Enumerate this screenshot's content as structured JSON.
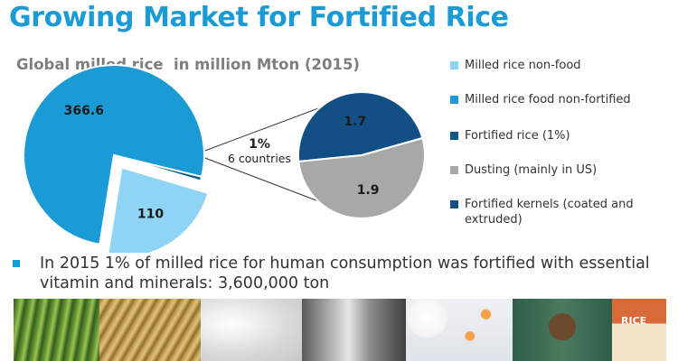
{
  "title": "Growing Market for Fortified Rice",
  "chart_data": [
    {
      "type": "pie",
      "title": "Global milled rice  in million Mton (2015)",
      "slices": [
        {
          "name": "Milled rice non-food",
          "value": 110,
          "label": "110",
          "color": "#8fd3f5",
          "exploded": true
        },
        {
          "name": "Milled rice food non-fortified",
          "value": 366.6,
          "label": "366.6",
          "color": "#1b9bd6"
        },
        {
          "name": "Fortified rice (1%)",
          "value": 3.6,
          "label": "",
          "color": "#0d5a86"
        }
      ],
      "annotation": {
        "percent": "1%",
        "text": "6 countries"
      }
    },
    {
      "type": "pie",
      "title": "",
      "slices": [
        {
          "name": "Fortified kernels (coated and extruded)",
          "value": 1.7,
          "label": "1.7",
          "color": "#124f85"
        },
        {
          "name": "Dusting (mainly in US)",
          "value": 1.9,
          "label": "1.9",
          "color": "#a8a8a8"
        }
      ]
    }
  ],
  "legend": [
    {
      "label": "Milled rice non-food",
      "color": "#8fd3f5"
    },
    {
      "label": "Milled rice food non-fortified",
      "color": "#1b9bd6"
    },
    {
      "label": "Fortified rice (1%)",
      "color": "#0d5a86"
    },
    {
      "label": "Dusting (mainly in US)",
      "color": "#a8a8a8"
    },
    {
      "label": "Fortified kernels (coated and extruded)",
      "color": "#124f85"
    }
  ],
  "note": "In 2015 1% of milled rice for human consumption was fortified with essential vitamin and minerals: 3,600,000 ton",
  "photo_strip": {
    "bag_label": "RICE",
    "images": [
      "rice-field-photo",
      "rice-stalks-photo",
      "white-rice-grains-photo",
      "extruder-machine-photo",
      "fortified-kernels-photo",
      "child-eating-photo",
      "rice-bag-photo"
    ]
  }
}
